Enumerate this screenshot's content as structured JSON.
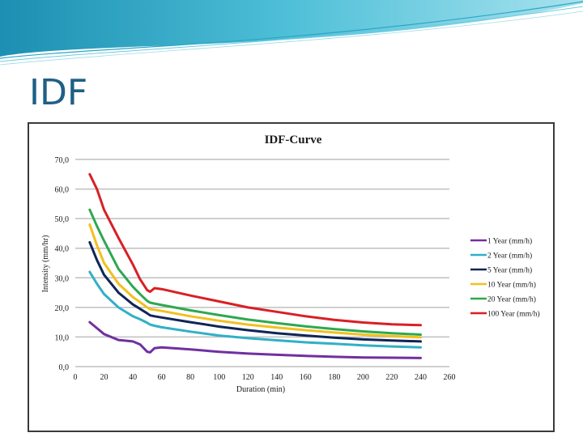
{
  "slide": {
    "title": "IDF"
  },
  "colors": {
    "title": "#1f5f86",
    "header_teal": "#2aa6c4",
    "gridline": "#bfbfbf",
    "frame": "#3b3b3b"
  },
  "chart_data": {
    "type": "line",
    "title": "IDF-Curve",
    "xlabel": "Duration (min)",
    "ylabel": "Intensity (mm/hr)",
    "xlim": [
      0,
      260
    ],
    "ylim": [
      0,
      70
    ],
    "xticks": [
      "0",
      "20",
      "40",
      "60",
      "80",
      "100",
      "120",
      "140",
      "160",
      "180",
      "200",
      "220",
      "240",
      "260"
    ],
    "yticks": [
      "0,0",
      "10,0",
      "20,0",
      "30,0",
      "40,0",
      "50,0",
      "60,0",
      "70,0"
    ],
    "grid": "horizontal",
    "legend_position": "right",
    "x": [
      10,
      15,
      20,
      30,
      40,
      45,
      50,
      52,
      55,
      60,
      80,
      100,
      120,
      140,
      160,
      180,
      200,
      220,
      240
    ],
    "series": [
      {
        "name": "1 Year (mm/h)",
        "color": "#7030a0",
        "values": [
          15.0,
          13.0,
          11.0,
          9.0,
          8.5,
          7.5,
          5.0,
          4.8,
          6.2,
          6.5,
          5.8,
          5.0,
          4.4,
          4.0,
          3.6,
          3.3,
          3.1,
          3.0,
          2.9
        ]
      },
      {
        "name": "2 Year (mm/h)",
        "color": "#31b0c6",
        "values": [
          32.0,
          28.0,
          24.5,
          20.0,
          17.0,
          16.0,
          14.8,
          14.2,
          13.8,
          13.3,
          11.8,
          10.5,
          9.6,
          8.9,
          8.2,
          7.7,
          7.2,
          6.8,
          6.5
        ]
      },
      {
        "name": "5 Year (mm/h)",
        "color": "#0f2557",
        "values": [
          42.0,
          36.0,
          31.0,
          25.0,
          21.0,
          19.5,
          18.0,
          17.3,
          17.0,
          16.6,
          15.0,
          13.5,
          12.3,
          11.3,
          10.5,
          9.8,
          9.2,
          8.8,
          8.5
        ]
      },
      {
        "name": "10 Year (mm/h)",
        "color": "#f2c01e",
        "values": [
          48.0,
          41.0,
          35.0,
          28.0,
          23.5,
          21.8,
          20.0,
          19.4,
          19.2,
          18.8,
          17.0,
          15.5,
          14.2,
          13.2,
          12.3,
          11.5,
          10.8,
          10.3,
          9.9
        ]
      },
      {
        "name": "20 Year (mm/h)",
        "color": "#2ea84f",
        "values": [
          53.0,
          47.5,
          42.5,
          33.0,
          27.0,
          24.5,
          22.2,
          21.6,
          21.3,
          20.8,
          19.0,
          17.4,
          15.9,
          14.7,
          13.6,
          12.7,
          11.9,
          11.3,
          10.8
        ]
      },
      {
        "name": "100 Year (mm/h)",
        "color": "#d91f26",
        "values": [
          65.0,
          60.0,
          53.0,
          43.5,
          34.5,
          29.5,
          25.8,
          25.3,
          26.5,
          26.2,
          24.0,
          22.0,
          20.0,
          18.5,
          17.0,
          15.8,
          14.9,
          14.3,
          14.0
        ]
      }
    ]
  }
}
